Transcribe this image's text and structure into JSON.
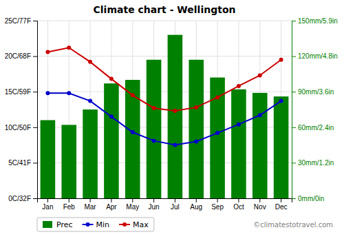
{
  "chart_data": {
    "type": "bar",
    "title": "Climate chart - Wellington",
    "categories": [
      "Jan",
      "Feb",
      "Mar",
      "Apr",
      "May",
      "Jun",
      "Jul",
      "Aug",
      "Sep",
      "Oct",
      "Nov",
      "Dec"
    ],
    "series": [
      {
        "name": "Prec",
        "type": "bar",
        "axis": "y2",
        "color": "#008000",
        "values": [
          66,
          62,
          75,
          97,
          100,
          117,
          138,
          117,
          102,
          92,
          89,
          86
        ]
      },
      {
        "name": "Min",
        "type": "line",
        "color": "#0000cc",
        "marker": "circle",
        "values": [
          14.8,
          14.8,
          13.7,
          11.5,
          9.3,
          8.1,
          7.5,
          8.0,
          9.2,
          10.4,
          11.7,
          13.7
        ]
      },
      {
        "name": "Max",
        "type": "line",
        "color": "#cc0000",
        "marker": "circle",
        "values": [
          20.6,
          21.2,
          19.2,
          16.8,
          14.5,
          12.7,
          12.3,
          12.8,
          14.2,
          15.8,
          17.3,
          19.5
        ]
      }
    ],
    "ylim": [
      0,
      25
    ],
    "yticks": [
      {
        "value": 0,
        "label": "0C/32F"
      },
      {
        "value": 5,
        "label": "5C/41F"
      },
      {
        "value": 10,
        "label": "10C/50F"
      },
      {
        "value": 15,
        "label": "15C/59F"
      },
      {
        "value": 20,
        "label": "20C/68F"
      },
      {
        "value": 25,
        "label": "25C/77F"
      }
    ],
    "y2lim": [
      0,
      150
    ],
    "y2ticks": [
      {
        "value": 0,
        "label": "0mm/0in"
      },
      {
        "value": 30,
        "label": "30mm/1.2in"
      },
      {
        "value": 60,
        "label": "60mm/2.4in"
      },
      {
        "value": 90,
        "label": "90mm/3.6in"
      },
      {
        "value": 120,
        "label": "120mm/4.8in"
      },
      {
        "value": 150,
        "label": "150mm/5.9in"
      }
    ],
    "grid": true,
    "legend": "bottom",
    "annotations": [
      "©climatestotravel.com"
    ]
  }
}
